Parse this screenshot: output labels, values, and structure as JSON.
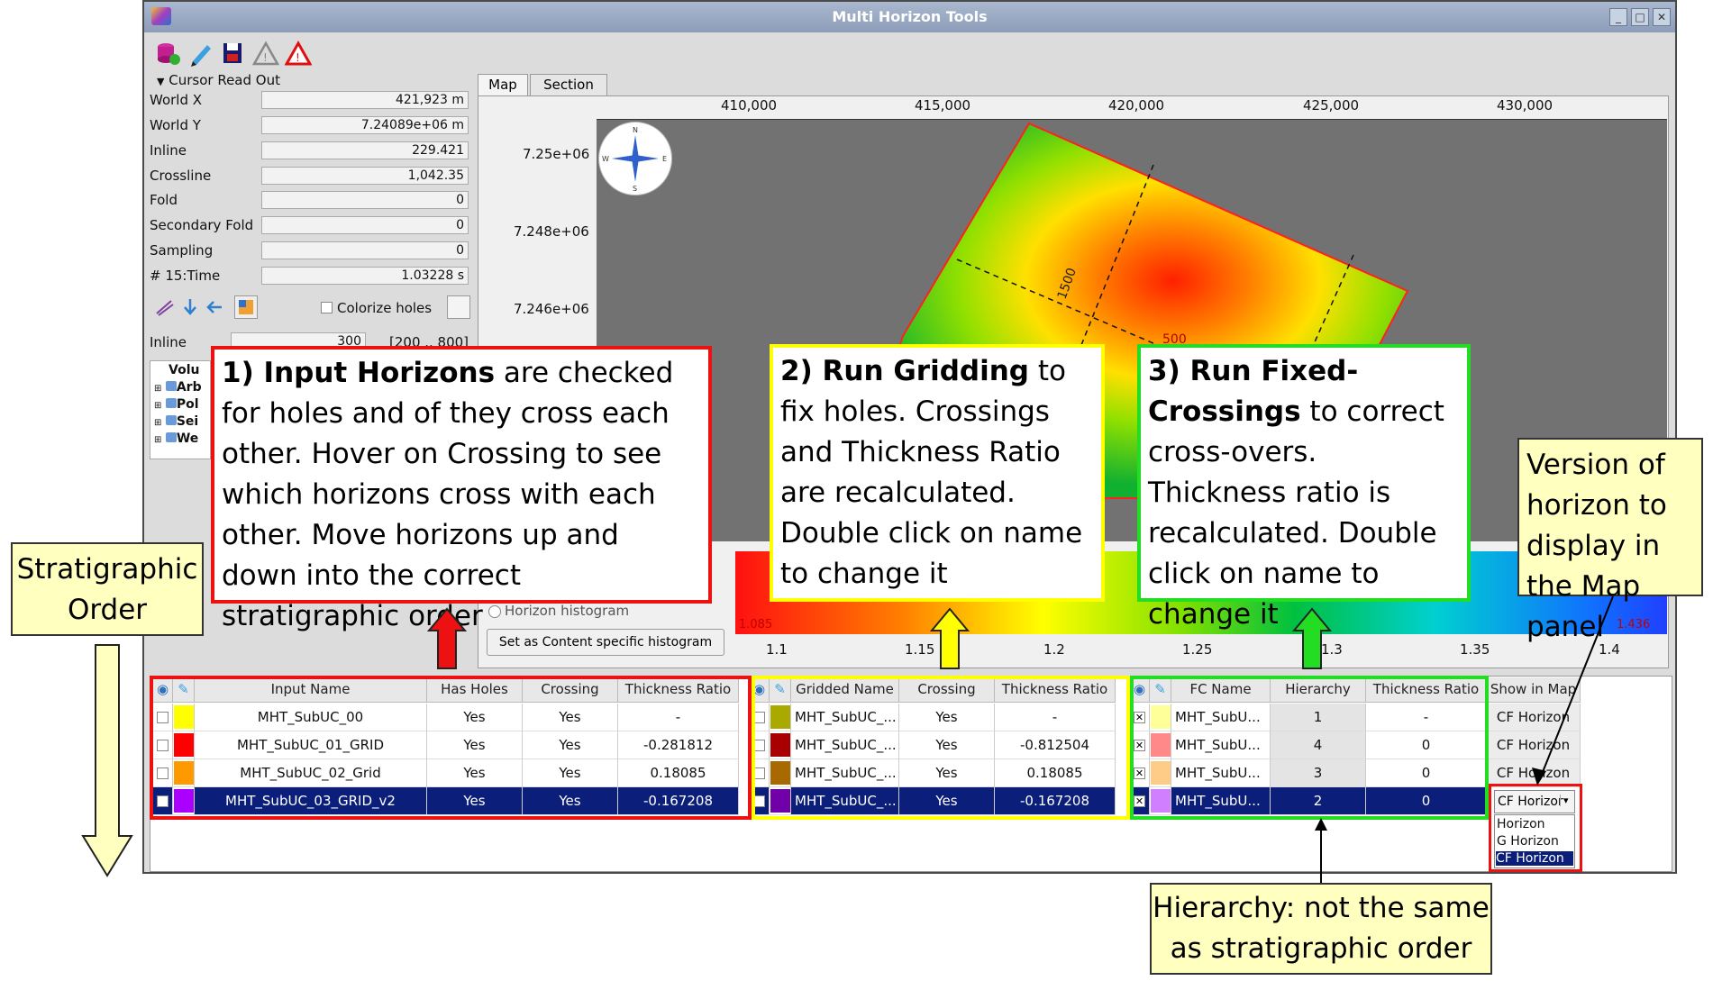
{
  "window": {
    "title": "Multi Horizon Tools"
  },
  "toolbar": {
    "icons": [
      "database-icon",
      "pencil-icon",
      "save-icon",
      "warning-gray-icon",
      "warning-red-icon"
    ]
  },
  "cursor_readout": {
    "header": "Cursor Read Out",
    "rows": [
      {
        "label": "World X",
        "value": "421,923 m"
      },
      {
        "label": "World Y",
        "value": "7.24089e+06 m"
      },
      {
        "label": "Inline",
        "value": "229.421"
      },
      {
        "label": "Crossline",
        "value": "1,042.35"
      },
      {
        "label": "Fold",
        "value": "0"
      },
      {
        "label": "Secondary Fold",
        "value": "0"
      },
      {
        "label": "Sampling",
        "value": "0"
      },
      {
        "label": "# 15:Time",
        "value": "1.03228 s"
      }
    ]
  },
  "colorize_holes": "Colorize holes",
  "inline_field": {
    "label": "Inline",
    "value": "300",
    "range": "[200 .. 800]"
  },
  "tree": [
    "Volu",
    "Arb",
    "Pol",
    "Sei",
    "We"
  ],
  "tabs": [
    "Map",
    "Section"
  ],
  "map": {
    "x_ticks": [
      "410,000",
      "415,000",
      "420,000",
      "425,000",
      "430,000"
    ],
    "y_ticks": [
      "7.25e+06",
      "7.248e+06",
      "7.246e+06"
    ],
    "contour_labels": [
      "1500",
      "500"
    ],
    "compass": {
      "n": "N",
      "s": "S",
      "e": "E",
      "w": "W"
    }
  },
  "histogram": {
    "radio_label": "Horizon histogram",
    "button": "Set as Content specific histogram",
    "ticks": [
      "1.1",
      "1.15",
      "1.2",
      "1.25",
      "1.3",
      "1.35",
      "1.4"
    ],
    "min_label": "1.085",
    "max_label": "1.436"
  },
  "input_table": {
    "headers": [
      "Input Name",
      "Has Holes",
      "Crossing",
      "Thickness Ratio"
    ],
    "rows": [
      {
        "name": "MHT_SubUC_00",
        "holes": "Yes",
        "crossing": "Yes",
        "ratio": "-",
        "color": "#ffff00"
      },
      {
        "name": "MHT_SubUC_01_GRID",
        "holes": "Yes",
        "crossing": "Yes",
        "ratio": "-0.281812",
        "color": "#ff0000"
      },
      {
        "name": "MHT_SubUC_02_Grid",
        "holes": "Yes",
        "crossing": "Yes",
        "ratio": "0.18085",
        "color": "#ff9900"
      },
      {
        "name": "MHT_SubUC_03_GRID_v2",
        "holes": "Yes",
        "crossing": "Yes",
        "ratio": "-0.167208",
        "color": "#aa00ff"
      }
    ]
  },
  "gridded_table": {
    "headers": [
      "Gridded Name",
      "Crossing",
      "Thickness Ratio"
    ],
    "rows": [
      {
        "name": "MHT_SubUC_...",
        "crossing": "Yes",
        "ratio": "-",
        "color": "#a9a900"
      },
      {
        "name": "MHT_SubUC_...",
        "crossing": "Yes",
        "ratio": "-0.812504",
        "color": "#a80000"
      },
      {
        "name": "MHT_SubUC_...",
        "crossing": "Yes",
        "ratio": "0.18085",
        "color": "#a86a00"
      },
      {
        "name": "MHT_SubUC_...",
        "crossing": "Yes",
        "ratio": "-0.167208",
        "color": "#7000a8"
      }
    ]
  },
  "fc_table": {
    "headers": [
      "FC Name",
      "Hierarchy",
      "Thickness Ratio"
    ],
    "rows": [
      {
        "name": "MHT_SubU...",
        "hierarchy": "1",
        "ratio": "-",
        "color": "#ffff99"
      },
      {
        "name": "MHT_SubU...",
        "hierarchy": "4",
        "ratio": "0",
        "color": "#ff8888"
      },
      {
        "name": "MHT_SubU...",
        "hierarchy": "3",
        "ratio": "0",
        "color": "#ffcc88"
      },
      {
        "name": "MHT_SubU...",
        "hierarchy": "2",
        "ratio": "0",
        "color": "#d080ff"
      }
    ]
  },
  "show_in_map": {
    "header": "Show in Map",
    "values": [
      "CF Horizon",
      "CF Horizon",
      "CF Horizon"
    ],
    "combo": "CF Horizor",
    "options": [
      "Horizon",
      "G Horizon",
      "CF Horizon"
    ]
  },
  "annotations": {
    "box1": {
      "bold": "1) Input Horizons",
      "text": " are checked for holes and of they cross each other. Hover on Crossing to see which horizons cross with each other. Move horizons up and down into the correct stratigraphic order"
    },
    "box2": {
      "bold": "2) Run Gridding",
      "text": " to fix holes. Crossings and Thickness Ratio are recalculated. Double click on name to change it"
    },
    "box3": {
      "bold": "3) Run Fixed-Crossings",
      "text": " to correct cross-overs. Thickness ratio is recalculated. Double click on name to change it"
    },
    "version": "Version of horizon to display in the Map panel",
    "strat": "Stratigraphic Order",
    "hierarchy": "Hierarchy: not the same as stratigraphic order"
  },
  "colors": {
    "red": "#ee1111",
    "yellow": "#ffff00",
    "green": "#22dd22",
    "selection": "#0a1e7a"
  }
}
